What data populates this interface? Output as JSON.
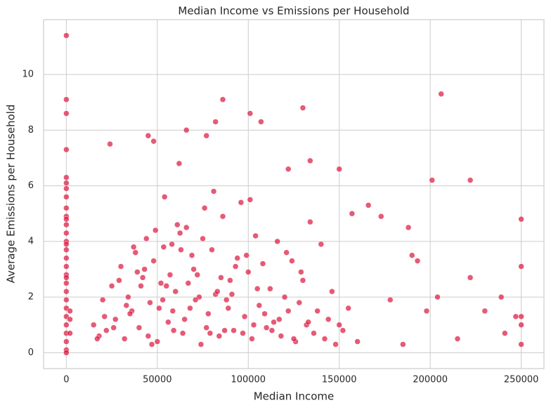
{
  "chart_data": {
    "type": "scatter",
    "title": "Median Income vs Emissions per Household",
    "x_label": "Median Income",
    "y_label": "Average Emissions per Household",
    "color": "#dc143c",
    "grid": true,
    "xlim": [
      -12500,
      262500
    ],
    "ylim": [
      -0.57,
      11.97
    ],
    "xticks": [
      0,
      50000,
      100000,
      150000,
      200000,
      250000
    ],
    "yticks": [
      0,
      2,
      4,
      6,
      8,
      10
    ],
    "x": [
      0,
      0,
      0,
      0,
      0,
      0,
      0,
      0,
      0,
      0,
      0,
      0,
      0,
      0,
      0,
      0,
      0,
      0,
      0,
      0,
      0,
      0,
      0,
      0,
      0,
      0,
      0,
      0,
      0,
      0,
      2000,
      2000,
      2000,
      206000,
      201000,
      222000,
      250000,
      250000,
      250000,
      250000,
      250000,
      188000,
      190000,
      193000,
      166000,
      157000,
      173000,
      130000,
      86000,
      101000,
      107000,
      66000,
      45000,
      77000,
      24000,
      82000,
      48000,
      134000,
      150000,
      122000,
      239000,
      222000,
      241000,
      247000,
      230000,
      215000,
      204000,
      198000,
      185000,
      178000,
      15000,
      18000,
      20000,
      22000,
      25000,
      27000,
      30000,
      32000,
      34000,
      36000,
      38000,
      40000,
      42000,
      44000,
      46000,
      48000,
      50000,
      52000,
      54000,
      56000,
      58000,
      60000,
      62000,
      64000,
      66000,
      68000,
      70000,
      72000,
      74000,
      76000,
      78000,
      80000,
      82000,
      84000,
      86000,
      88000,
      90000,
      92000,
      94000,
      96000,
      98000,
      100000,
      102000,
      104000,
      106000,
      108000,
      110000,
      112000,
      114000,
      116000,
      118000,
      120000,
      122000,
      124000,
      126000,
      128000,
      130000,
      132000,
      134000,
      136000,
      138000,
      140000,
      142000,
      144000,
      146000,
      148000,
      150000,
      152000,
      155000,
      160000,
      17000,
      21000,
      26000,
      29000,
      33000,
      37000,
      41000,
      45000,
      49000,
      53000,
      57000,
      61000,
      65000,
      69000,
      73000,
      77000,
      81000,
      85000,
      89000,
      93000,
      97000,
      101000,
      105000,
      109000,
      113000,
      117000,
      121000,
      125000,
      129000,
      133000,
      43000,
      51000,
      55000,
      59000,
      63000,
      67000,
      71000,
      75000,
      79000,
      83000,
      35000,
      39000,
      47000,
      53500,
      58500,
      62500,
      87000,
      91000,
      99000,
      103000
    ],
    "values": [
      11.4,
      9.1,
      8.6,
      7.3,
      6.3,
      6.1,
      5.9,
      5.6,
      5.2,
      4.9,
      4.6,
      4.3,
      4.0,
      3.7,
      3.4,
      3.1,
      2.8,
      2.5,
      2.2,
      1.9,
      1.6,
      1.3,
      1.0,
      0.7,
      0.4,
      0.1,
      0.0,
      4.8,
      3.9,
      2.7,
      1.5,
      1.2,
      0.7,
      9.3,
      6.2,
      6.2,
      4.8,
      3.1,
      1.3,
      1.0,
      0.3,
      4.5,
      3.5,
      3.3,
      5.3,
      5.0,
      4.9,
      8.8,
      9.1,
      8.6,
      8.3,
      8.0,
      7.8,
      7.8,
      7.5,
      8.3,
      7.6,
      6.9,
      6.6,
      6.6,
      2.0,
      2.7,
      0.7,
      1.3,
      1.5,
      0.5,
      2.0,
      1.5,
      0.3,
      1.9,
      1.0,
      0.6,
      1.9,
      0.8,
      2.4,
      1.2,
      3.1,
      0.5,
      2.0,
      1.5,
      3.6,
      0.9,
      2.7,
      4.1,
      1.8,
      3.3,
      0.4,
      2.5,
      5.6,
      1.1,
      3.9,
      2.2,
      6.8,
      0.7,
      4.5,
      1.6,
      3.0,
      2.8,
      0.3,
      5.2,
      1.4,
      3.7,
      2.1,
      0.6,
      4.9,
      1.9,
      2.6,
      0.8,
      3.4,
      5.4,
      1.3,
      2.9,
      0.5,
      4.2,
      1.7,
      3.2,
      0.9,
      2.3,
      1.1,
      4.0,
      0.6,
      2.0,
      1.5,
      3.3,
      0.4,
      1.8,
      2.6,
      1.0,
      4.7,
      0.7,
      1.5,
      3.9,
      0.5,
      1.2,
      2.2,
      0.3,
      1.0,
      0.8,
      1.6,
      0.4,
      0.5,
      1.3,
      0.9,
      2.6,
      1.7,
      3.8,
      2.4,
      0.6,
      4.4,
      1.9,
      2.8,
      4.6,
      1.2,
      3.5,
      2.0,
      0.9,
      5.8,
      2.7,
      1.6,
      3.1,
      0.7,
      5.5,
      2.3,
      1.4,
      0.8,
      1.2,
      3.6,
      0.5,
      2.9,
      1.1,
      3.0,
      1.6,
      2.4,
      0.8,
      3.7,
      2.5,
      1.9,
      4.1,
      0.7,
      2.2,
      1.4,
      2.9,
      0.3,
      3.8,
      1.5,
      4.3,
      0.8,
      2.1,
      3.5,
      1.0
    ]
  }
}
